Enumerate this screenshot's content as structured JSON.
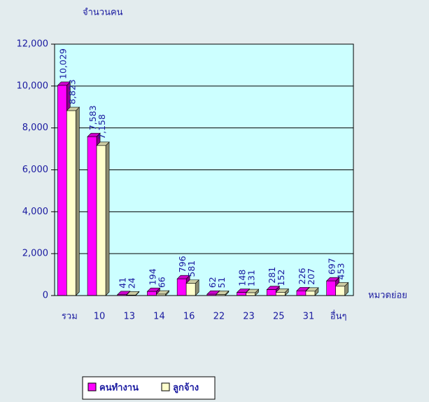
{
  "chart_data": {
    "type": "bar",
    "y_label": "จำนวนคน",
    "x_label": "หมวดย่อย",
    "categories": [
      "รวม",
      "10",
      "13",
      "14",
      "16",
      "22",
      "23",
      "25",
      "31",
      "อื่นๆ"
    ],
    "series": [
      {
        "name": "คนทำงาน",
        "color": "#ff00ff",
        "values": [
          10029,
          7583,
          41,
          194,
          796,
          62,
          148,
          281,
          226,
          697
        ],
        "value_labels": [
          "10,029",
          "7,583",
          "41",
          "194",
          "796",
          "62",
          "148",
          "281",
          "226",
          "697"
        ]
      },
      {
        "name": "ลูกจ้าง",
        "color": "#ffffcc",
        "values": [
          8823,
          7158,
          24,
          66,
          581,
          51,
          131,
          152,
          207,
          453
        ],
        "value_labels": [
          "8,823",
          "7,158",
          "24",
          "66",
          "581",
          "51",
          "131",
          "152",
          "207",
          "453"
        ]
      }
    ],
    "ylim": [
      0,
      12000
    ],
    "yticks": [
      0,
      {
        "value": 2000,
        "label": "2,000"
      },
      {
        "value": 4000,
        "label": "4,000"
      },
      {
        "value": 6000,
        "label": "6,000"
      },
      {
        "value": 8000,
        "label": "8,000"
      },
      {
        "value": 10000,
        "label": "10,000"
      },
      {
        "value": 12000,
        "label": "12,000"
      }
    ],
    "grid": true,
    "legend": "bottom"
  }
}
